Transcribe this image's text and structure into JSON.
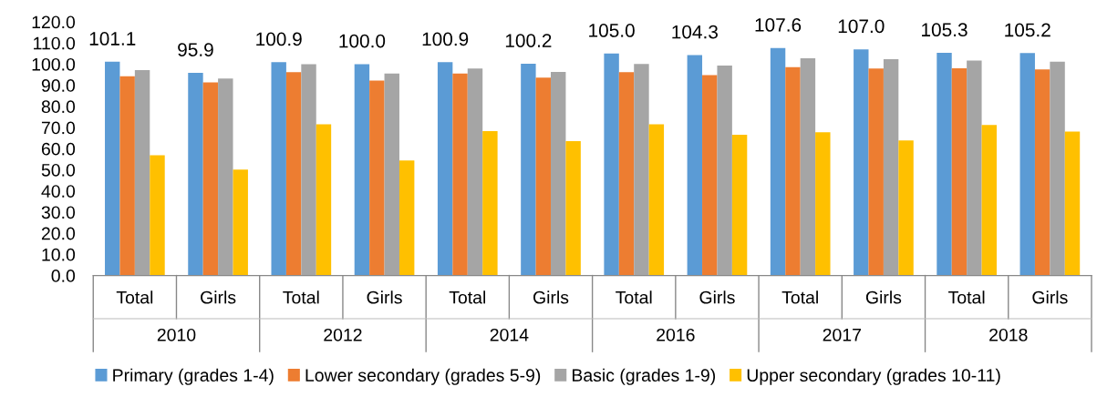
{
  "chart_data": {
    "type": "bar",
    "categories": [
      "Total",
      "Girls",
      "Total",
      "Girls",
      "Total",
      "Girls",
      "Total",
      "Girls",
      "Total",
      "Girls",
      "Total",
      "Girls"
    ],
    "series": [
      {
        "name": "Primary (grades 1-4)",
        "color": "#5b9bd5",
        "values": [
          101.1,
          95.9,
          100.9,
          100.0,
          100.9,
          100.2,
          105.0,
          104.3,
          107.6,
          107.0,
          105.3,
          105.2
        ],
        "value_labels": [
          "101.1",
          "95.9",
          "100.9",
          "100.0",
          "100.9",
          "100.2",
          "105.0",
          "104.3",
          "107.6",
          "107.0",
          "105.3",
          "105.2"
        ]
      },
      {
        "name": "Lower secondary (grades 5-9)",
        "color": "#ed7d31",
        "values": [
          94.3,
          91.4,
          96.2,
          92.2,
          95.6,
          93.6,
          96.2,
          94.8,
          98.6,
          97.9,
          98.0,
          97.5
        ]
      },
      {
        "name": "Basic (grades 1-9)",
        "color": "#a5a5a5",
        "values": [
          97.2,
          93.2,
          100.0,
          95.6,
          97.9,
          96.3,
          100.1,
          99.3,
          102.8,
          102.3,
          101.7,
          101.1
        ]
      },
      {
        "name": "Upper secondary (grades 10-11)",
        "color": "#ffc000",
        "values": [
          56.9,
          50.1,
          71.5,
          54.4,
          68.3,
          63.6,
          71.5,
          66.6,
          67.8,
          63.9,
          71.2,
          68.1
        ]
      }
    ],
    "annotations": [
      "2010",
      "2012",
      "2014",
      "2016",
      "2017",
      "2018"
    ],
    "ylim": [
      0,
      120
    ],
    "yticks": [
      {
        "value": 0,
        "label": "0.0"
      },
      {
        "value": 10,
        "label": "10.0"
      },
      {
        "value": 20,
        "label": "20.0"
      },
      {
        "value": 30,
        "label": "30.0"
      },
      {
        "value": 40,
        "label": "40.0"
      },
      {
        "value": 50,
        "label": "50.0"
      },
      {
        "value": 60,
        "label": "60.0"
      },
      {
        "value": 70,
        "label": "70.0"
      },
      {
        "value": 80,
        "label": "80.0"
      },
      {
        "value": 90,
        "label": "90.0"
      },
      {
        "value": 100,
        "label": "100.0"
      },
      {
        "value": 110,
        "label": "110.0"
      },
      {
        "value": 120,
        "label": "120.0"
      }
    ],
    "grid": false,
    "legend": "bottom"
  }
}
